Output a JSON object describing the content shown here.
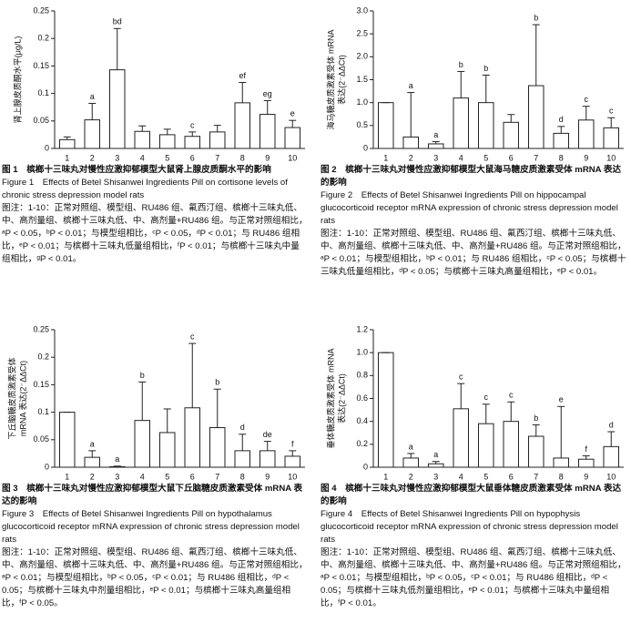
{
  "chart_data": [
    {
      "type": "bar",
      "ylabel": [
        "肾上腺皮质酮水平(μg/L)"
      ],
      "categories": [
        "1",
        "2",
        "3",
        "4",
        "5",
        "6",
        "7",
        "8",
        "9",
        "10"
      ],
      "values": [
        0.016,
        0.052,
        0.143,
        0.031,
        0.025,
        0.022,
        0.03,
        0.083,
        0.062,
        0.038
      ],
      "errors": [
        0.005,
        0.03,
        0.075,
        0.01,
        0.01,
        0.008,
        0.012,
        0.037,
        0.025,
        0.013
      ],
      "annotations": [
        null,
        "a",
        "bd",
        null,
        null,
        "c",
        null,
        "ef",
        "eg",
        "e"
      ],
      "color": "#ffffff",
      "ylim": [
        0,
        0.25
      ],
      "yticks": [
        0,
        0.05,
        0.1,
        0.15,
        0.2,
        0.25
      ],
      "caption": {
        "title": "图 1　槟榔十三味丸对慢性应激抑郁模型大鼠肾上腺皮质酮水平的影响",
        "title_en": "Figure 1　Effects of Betel Shisanwei Ingredients Pill on cortisone levels of chronic stress depression model rats",
        "note": "图注：1-10：正常对照组、模型组、RU486 组、氟西汀组、槟榔十三味丸低、中、高剂量组、槟榔十三味丸低、中、高剂量+RU486 组。与正常对照组相比，ᵃP < 0.05，ᵇP < 0.01；与模型组相比，ᶜP < 0.05，ᵈP < 0.01；与 RU486 组相比，ᵉP < 0.01；与槟榔十三味丸低量组相比，ᶠP < 0.01；与槟榔十三味丸中量组相比，ᵍP < 0.01。"
      }
    },
    {
      "type": "bar",
      "ylabel": [
        "海马糖皮质激素受体 mRNA",
        "表达(2⁻ΔΔCt)"
      ],
      "categories": [
        "1",
        "2",
        "3",
        "4",
        "5",
        "6",
        "7",
        "8",
        "9",
        "10"
      ],
      "values": [
        1.0,
        0.25,
        0.1,
        1.1,
        1.0,
        0.57,
        1.37,
        0.33,
        0.62,
        0.45
      ],
      "errors": [
        0,
        0.97,
        0.05,
        0.58,
        0.6,
        0.17,
        1.33,
        0.15,
        0.3,
        0.22
      ],
      "annotations": [
        null,
        "a",
        "a",
        "b",
        "b",
        null,
        "b",
        "d",
        "c",
        "c"
      ],
      "color": "#ffffff",
      "ylim": [
        0,
        3
      ],
      "yticks": [
        0,
        0.5,
        {
          "value": 1,
          "label": "1.0"
        },
        1.5,
        {
          "value": 2,
          "label": "2.0"
        },
        2.5,
        {
          "value": 3,
          "label": "3.0"
        }
      ],
      "caption": {
        "title": "图 2　槟榔十三味丸对慢性应激抑郁模型大鼠海马糖皮质激素受体 mRNA 表达的影响",
        "title_en": "Figure 2　Effects of Betel Shisanwei Ingredients Pill on hippocampal glucocorticoid receptor mRNA expression of chronic stress depression model rats",
        "note": "图注：1-10：正常对照组、模型组、RU486 组、氟西汀组、槟榔十三味丸低、中、高剂量组、槟榔十三味丸低、中、高剂量+RU486 组。与正常对照组相比，ᵃP < 0.01；与模型组相比，ᵇP < 0.01；与 RU486 组相比，ᶜP < 0.05；与槟榔十三味丸低量组相比，ᵈP < 0.05；与槟榔十三味丸高量组相比，ᵉP < 0.01。"
      }
    },
    {
      "type": "bar",
      "ylabel": [
        "下丘脑糖皮质激素受体",
        "mRNA 表达(2⁻ΔΔCt)"
      ],
      "categories": [
        "1",
        "2",
        "3",
        "4",
        "5",
        "6",
        "7",
        "8",
        "9",
        "10"
      ],
      "values": [
        0.1,
        0.018,
        0.001,
        0.085,
        0.063,
        0.108,
        0.072,
        0.03,
        0.03,
        0.02
      ],
      "errors": [
        0,
        0.012,
        0.001,
        0.07,
        0.043,
        0.117,
        0.07,
        0.03,
        0.017,
        0.01
      ],
      "annotations": [
        null,
        "a",
        "a",
        "b",
        null,
        "c",
        "b",
        "d",
        "de",
        "f"
      ],
      "color": "#ffffff",
      "ylim": [
        0,
        0.25
      ],
      "yticks": [
        0,
        0.05,
        0.1,
        0.15,
        0.2,
        0.25
      ],
      "caption": {
        "title": "图 3　槟榔十三味丸对慢性应激抑郁模型大鼠下丘脑糖皮质激素受体 mRNA 表达的影响",
        "title_en": "Figure 3　Effects of Betel Shisanwei Ingredients Pill on hypothalamus glucocorticoid receptor mRNA expression of chronic stress depression model rats",
        "note": "图注：1-10：正常对照组、模型组、RU486 组、氟西汀组、槟榔十三味丸低、中、高剂量组、槟榔十三味丸低、中、高剂量+RU486 组。与正常对照组相比，ᵃP < 0.01；与模型组相比，ᵇP < 0.05，ᶜP < 0.01；与 RU486 组相比，ᵈP < 0.05；与槟榔十三味丸中剂量组相比，ᵉP < 0.01；与槟榔十三味丸高量组相比，ᶠP < 0.05。"
      }
    },
    {
      "type": "bar",
      "ylabel": [
        "垂体糖皮质激素受体 mRNA",
        "表达(2⁻ΔΔCt)"
      ],
      "categories": [
        "1",
        "2",
        "3",
        "4",
        "5",
        "6",
        "7",
        "8",
        "9",
        "10"
      ],
      "values": [
        1.0,
        0.08,
        0.03,
        0.51,
        0.38,
        0.4,
        0.27,
        0.08,
        0.07,
        0.18
      ],
      "errors": [
        0,
        0.04,
        0.02,
        0.22,
        0.17,
        0.17,
        0.1,
        0.45,
        0.03,
        0.13
      ],
      "annotations": [
        null,
        "a",
        "a",
        "c",
        "c",
        "c",
        "b",
        "e",
        "f",
        "d"
      ],
      "color": "#ffffff",
      "ylim": [
        0,
        1.2
      ],
      "yticks": [
        0,
        0.2,
        0.4,
        0.6,
        0.8,
        {
          "value": 1,
          "label": "1.0"
        },
        1.2
      ],
      "caption": {
        "title": "图 4　槟榔十三味丸对慢性应激抑郁模型大鼠垂体糖皮质激素受体 mRNA 表达的影响",
        "title_en": "Figure 4　Effects of Betel Shisanwei Ingredients Pill on hypophysis glucocorticoid receptor mRNA expression of chronic stress depression model rats",
        "note": "图注：1-10：正常对照组、模型组、RU486 组、氟西汀组、槟榔十三味丸低、中、高剂量组、槟榔十三味丸低、中、高剂量+RU486 组。与正常对照组相比，ᵃP < 0.01；与模型组相比，ᵇP < 0.05，ᶜP < 0.01；与 RU486 组相比，ᵈP < 0.05；与槟榔十三味丸低剂量组相比，ᵉP < 0.01；与槟榔十三味丸中量组相比，ᶠP < 0.01。"
      }
    }
  ]
}
